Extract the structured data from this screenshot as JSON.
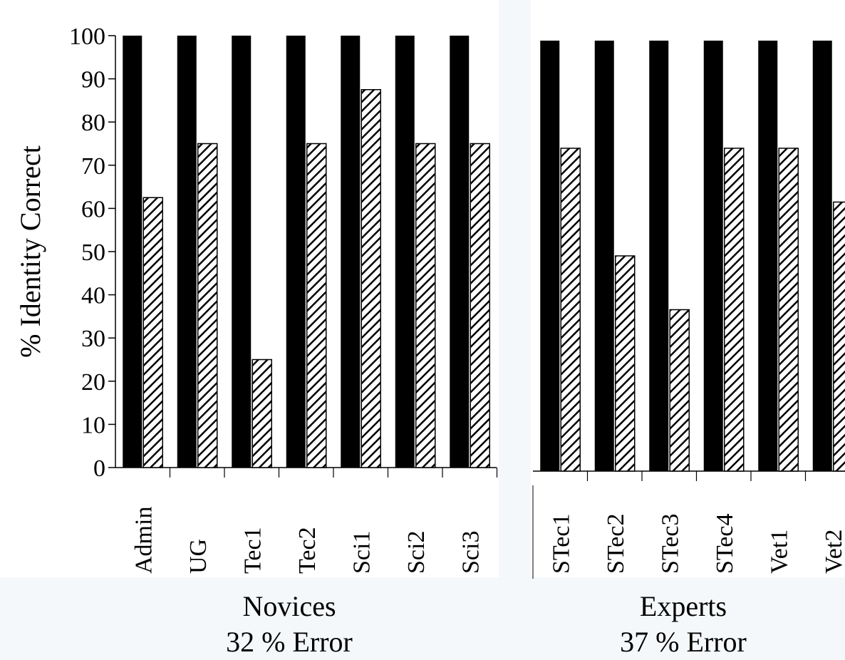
{
  "chart_data": [
    {
      "type": "bar",
      "group_label": "Novices",
      "subtitle": "32 % Error",
      "ylabel": "% Identity Correct",
      "ylim": [
        0,
        100
      ],
      "yticks": [
        0,
        10,
        20,
        30,
        40,
        50,
        60,
        70,
        80,
        90,
        100
      ],
      "categories": [
        "Admin",
        "UG",
        "Tec1",
        "Tec2",
        "Sci1",
        "Sci2",
        "Sci3"
      ],
      "series": [
        {
          "style": "solid",
          "values": [
            100,
            100,
            100,
            100,
            100,
            100,
            100
          ]
        },
        {
          "style": "hatched",
          "values": [
            62.5,
            75,
            25,
            75,
            87.5,
            75,
            75
          ]
        }
      ]
    },
    {
      "type": "bar",
      "group_label": "Experts",
      "subtitle": "37 % Error",
      "ylim": [
        0,
        100
      ],
      "categories": [
        "STec1",
        "STec2",
        "STec3",
        "STec4",
        "Vet1",
        "Vet2"
      ],
      "series": [
        {
          "style": "solid",
          "values": [
            100,
            100,
            100,
            100,
            100,
            100
          ]
        },
        {
          "style": "hatched",
          "values": [
            75,
            50,
            37.5,
            75,
            75,
            62.5
          ]
        }
      ]
    }
  ],
  "colors": {
    "solid_bar": "#000000",
    "hatch": "#000000",
    "background": "#ffffff"
  }
}
